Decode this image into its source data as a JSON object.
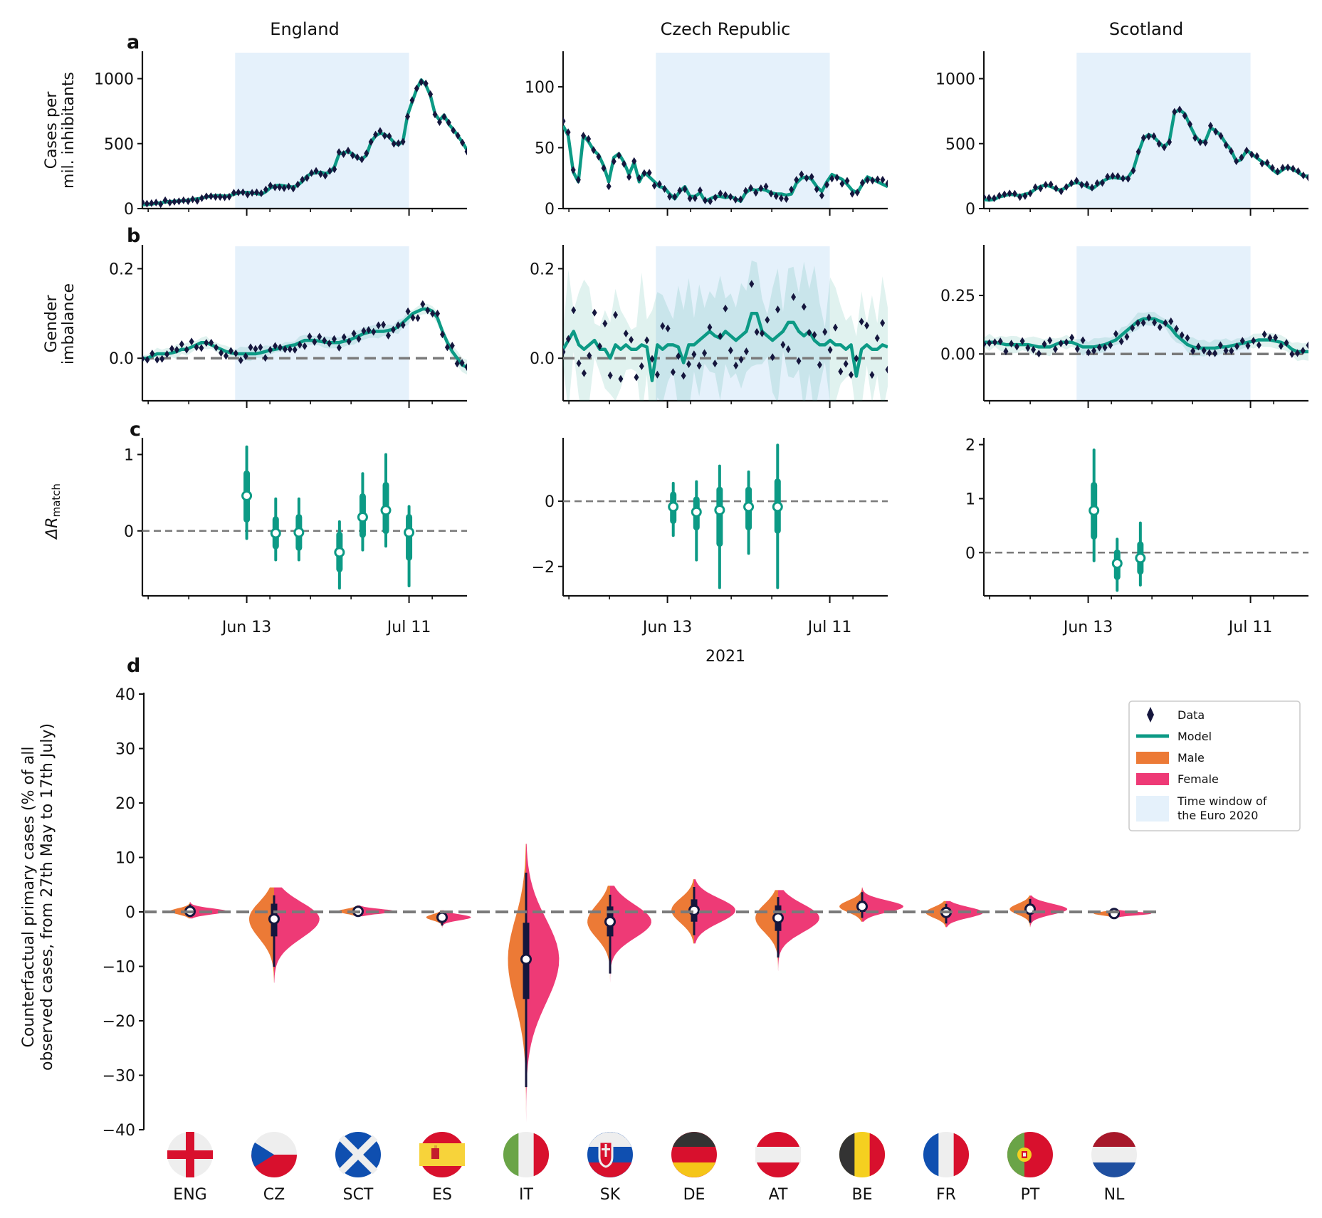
{
  "colors": {
    "euro_window": "#e5f1fb",
    "model": "#0c9a85",
    "data": "#15163d",
    "male": "#ec7a36",
    "female": "#ee3a76",
    "zero_line": "#7a7a7a",
    "axis": "#111111"
  },
  "figure": {
    "shared_xlabel": "2021",
    "date_ticks": [
      "Jun 13",
      "Jul 11"
    ]
  },
  "countries": [
    {
      "name": "England",
      "cases_ticks": [
        "0",
        "500",
        "1000"
      ],
      "gender_ticks": [
        "0.0",
        "0.2"
      ],
      "delta_ticks": [
        "0",
        "1"
      ]
    },
    {
      "name": "Czech Republic",
      "cases_ticks": [
        "0",
        "50",
        "100"
      ],
      "gender_ticks": [
        "0.0",
        "0.2"
      ],
      "delta_ticks": [
        "−2",
        "0"
      ]
    },
    {
      "name": "Scotland",
      "cases_ticks": [
        "0",
        "500",
        "1000"
      ],
      "gender_ticks": [
        "0.00",
        "0.25"
      ],
      "delta_ticks": [
        "0",
        "1",
        "2"
      ]
    }
  ],
  "panels": {
    "a": {
      "letter": "a",
      "ylabel_line1": "Cases per",
      "ylabel_line2": "mil. inhibitants"
    },
    "b": {
      "letter": "b",
      "ylabel_line1": "Gender",
      "ylabel_line2": "imbalance"
    },
    "c": {
      "letter": "c",
      "ylabel_main": "ΔR",
      "ylabel_sub": "match"
    },
    "d": {
      "letter": "d",
      "ylabel_line1": "Counterfactual primary cases (% of all",
      "ylabel_line2": "observed cases, from 27th May to 17th July)",
      "yticks": [
        "−40",
        "−30",
        "−20",
        "−10",
        "0",
        "10",
        "20",
        "30",
        "40"
      ]
    }
  },
  "legend": {
    "items": [
      {
        "label": "Data",
        "kind": "diamond"
      },
      {
        "label": "Model",
        "kind": "line"
      },
      {
        "label": "Male",
        "kind": "patch-male"
      },
      {
        "label": "Female",
        "kind": "patch-female"
      },
      {
        "label_line1": "Time window of",
        "label_line2": "the Euro 2020",
        "kind": "patch-window"
      }
    ]
  },
  "flags": [
    "ENG",
    "CZ",
    "SCT",
    "ES",
    "IT",
    "SK",
    "DE",
    "AT",
    "BE",
    "FR",
    "PT",
    "NL"
  ],
  "chart_data": [
    {
      "type": "line",
      "panel": "a",
      "x_range": [
        "2021-05-26",
        "2021-07-21"
      ],
      "highlight_window": [
        "2021-06-11",
        "2021-07-11"
      ],
      "series": [
        {
          "country": "England",
          "ylim": [
            0,
            1200
          ],
          "model": [
            30,
            30,
            35,
            40,
            45,
            50,
            55,
            55,
            60,
            60,
            65,
            70,
            75,
            80,
            90,
            95,
            100,
            100,
            95,
            100,
            110,
            120,
            125,
            125,
            120,
            115,
            110,
            130,
            160,
            175,
            180,
            175,
            170,
            165,
            180,
            210,
            250,
            270,
            275,
            280,
            270,
            280,
            320,
            420,
            430,
            440,
            420,
            390,
            380,
            410,
            510,
            560,
            580,
            570,
            550,
            510,
            490,
            520,
            720,
            820,
            920,
            990,
            950,
            870,
            730,
            680,
            720,
            650,
            610,
            560,
            510,
            450
          ]
        },
        {
          "country": "Czech Republic",
          "ylim": [
            0,
            128
          ],
          "model": [
            68,
            60,
            30,
            22,
            60,
            55,
            48,
            44,
            35,
            22,
            42,
            45,
            38,
            28,
            38,
            22,
            30,
            26,
            22,
            18,
            17,
            12,
            8,
            14,
            18,
            10,
            10,
            13,
            6,
            8,
            10,
            10,
            9,
            10,
            8,
            6,
            13,
            16,
            15,
            16,
            15,
            13,
            12,
            12,
            11,
            12,
            21,
            25,
            26,
            24,
            18,
            14,
            22,
            28,
            26,
            24,
            20,
            15,
            13,
            20,
            26,
            24,
            22,
            20,
            18
          ]
        },
        {
          "country": "Scotland",
          "ylim": [
            0,
            1200
          ],
          "model": [
            70,
            65,
            70,
            90,
            100,
            110,
            105,
            100,
            110,
            120,
            150,
            170,
            180,
            170,
            150,
            140,
            165,
            190,
            200,
            190,
            170,
            150,
            180,
            210,
            230,
            240,
            235,
            230,
            240,
            300,
            430,
            540,
            570,
            550,
            510,
            470,
            520,
            740,
            760,
            730,
            640,
            560,
            510,
            520,
            620,
            600,
            560,
            500,
            450,
            360,
            380,
            450,
            420,
            390,
            360,
            340,
            300,
            270,
            300,
            320,
            300,
            280,
            250,
            250
          ]
        }
      ]
    },
    {
      "type": "line",
      "panel": "b",
      "series": [
        {
          "country": "England",
          "ylim": [
            -0.095,
            0.25
          ],
          "model": [
            0.0,
            0.0,
            0.005,
            0.01,
            0.01,
            0.01,
            0.012,
            0.015,
            0.02,
            0.02,
            0.025,
            0.03,
            0.035,
            0.035,
            0.03,
            0.025,
            0.02,
            0.015,
            0.012,
            0.01,
            0.01,
            0.01,
            0.01,
            0.01,
            0.012,
            0.015,
            0.018,
            0.02,
            0.022,
            0.025,
            0.028,
            0.03,
            0.035,
            0.04,
            0.04,
            0.04,
            0.038,
            0.036,
            0.035,
            0.035,
            0.035,
            0.038,
            0.04,
            0.045,
            0.05,
            0.055,
            0.058,
            0.06,
            0.06,
            0.06,
            0.062,
            0.065,
            0.07,
            0.08,
            0.09,
            0.1,
            0.105,
            0.11,
            0.11,
            0.105,
            0.09,
            0.06,
            0.035,
            0.015,
            0.0,
            -0.015,
            -0.02
          ]
        },
        {
          "country": "Czech Republic",
          "ylim": [
            -0.095,
            0.25
          ],
          "model": [
            0.02,
            0.04,
            0.06,
            0.03,
            0.02,
            0.03,
            0.04,
            0.02,
            0.02,
            0.0,
            0.03,
            0.02,
            0.03,
            0.02,
            0.02,
            0.03,
            0.025,
            -0.05,
            0.03,
            0.02,
            0.03,
            0.03,
            0.025,
            -0.01,
            0.03,
            0.03,
            0.04,
            0.05,
            0.06,
            0.05,
            0.045,
            0.06,
            0.05,
            0.04,
            0.05,
            0.06,
            0.1,
            0.1,
            0.06,
            0.05,
            0.04,
            0.05,
            0.06,
            0.08,
            0.08,
            0.06,
            0.05,
            0.06,
            0.04,
            0.03,
            0.03,
            0.04,
            0.03,
            0.03,
            0.02,
            0.03,
            -0.04,
            0.02,
            0.03,
            0.02,
            0.02,
            0.03,
            0.025
          ]
        },
        {
          "country": "Scotland",
          "ylim": [
            -0.2,
            0.46
          ],
          "model": [
            0.05,
            0.05,
            0.05,
            0.045,
            0.04,
            0.04,
            0.04,
            0.04,
            0.04,
            0.035,
            0.03,
            0.03,
            0.03,
            0.04,
            0.05,
            0.05,
            0.05,
            0.04,
            0.03,
            0.03,
            0.03,
            0.035,
            0.04,
            0.05,
            0.06,
            0.08,
            0.1,
            0.12,
            0.14,
            0.15,
            0.15,
            0.15,
            0.14,
            0.13,
            0.11,
            0.08,
            0.06,
            0.04,
            0.03,
            0.025,
            0.025,
            0.025,
            0.025,
            0.03,
            0.03,
            0.035,
            0.04,
            0.045,
            0.05,
            0.055,
            0.06,
            0.06,
            0.06,
            0.055,
            0.05,
            0.04,
            0.02,
            0.01,
            0.01,
            0.01
          ]
        }
      ]
    },
    {
      "type": "scatter",
      "panel": "c",
      "description_of_values": "posterior median with 68% and 95% credible intervals",
      "series": [
        {
          "country": "England",
          "ylim": [
            -0.85,
            1.2
          ],
          "points": [
            {
              "date": "2021-06-13",
              "median": 0.46,
              "ci68": [
                0.15,
                0.75
              ],
              "ci95": [
                -0.1,
                1.1
              ]
            },
            {
              "date": "2021-06-18",
              "median": -0.03,
              "ci68": [
                -0.2,
                0.15
              ],
              "ci95": [
                -0.38,
                0.42
              ]
            },
            {
              "date": "2021-06-22",
              "median": -0.02,
              "ci68": [
                -0.22,
                0.18
              ],
              "ci95": [
                -0.38,
                0.42
              ]
            },
            {
              "date": "2021-06-29",
              "median": -0.28,
              "ci68": [
                -0.5,
                -0.05
              ],
              "ci95": [
                -0.75,
                0.12
              ]
            },
            {
              "date": "2021-07-03",
              "median": 0.18,
              "ci68": [
                -0.05,
                0.45
              ],
              "ci95": [
                -0.25,
                0.75
              ]
            },
            {
              "date": "2021-07-07",
              "median": 0.27,
              "ci68": [
                0.0,
                0.6
              ],
              "ci95": [
                -0.2,
                1.0
              ]
            },
            {
              "date": "2021-07-11",
              "median": -0.02,
              "ci68": [
                -0.35,
                0.18
              ],
              "ci95": [
                -0.72,
                0.32
              ]
            }
          ]
        },
        {
          "country": "Czech Republic",
          "ylim": [
            -2.9,
            1.9
          ],
          "points": [
            {
              "date": "2021-06-14",
              "median": -0.17,
              "ci68": [
                -0.6,
                0.2
              ],
              "ci95": [
                -1.05,
                0.55
              ]
            },
            {
              "date": "2021-06-18",
              "median": -0.33,
              "ci68": [
                -0.8,
                0.05
              ],
              "ci95": [
                -1.8,
                0.6
              ]
            },
            {
              "date": "2021-06-22",
              "median": -0.27,
              "ci68": [
                -1.3,
                0.35
              ],
              "ci95": [
                -2.65,
                1.08
              ]
            },
            {
              "date": "2021-06-27",
              "median": -0.17,
              "ci68": [
                -0.8,
                0.35
              ],
              "ci95": [
                -1.6,
                0.9
              ]
            },
            {
              "date": "2021-07-02",
              "median": -0.17,
              "ci68": [
                -0.9,
                0.6
              ],
              "ci95": [
                -2.65,
                1.72
              ]
            }
          ]
        },
        {
          "country": "Scotland",
          "ylim": [
            -0.8,
            2.1
          ],
          "points": [
            {
              "date": "2021-06-14",
              "median": 0.78,
              "ci68": [
                0.3,
                1.25
              ],
              "ci95": [
                -0.15,
                1.9
              ]
            },
            {
              "date": "2021-06-18",
              "median": -0.2,
              "ci68": [
                -0.45,
                0.0
              ],
              "ci95": [
                -0.7,
                0.25
              ]
            },
            {
              "date": "2021-06-22",
              "median": -0.1,
              "ci68": [
                -0.35,
                0.15
              ],
              "ci95": [
                -0.6,
                0.55
              ]
            }
          ]
        }
      ]
    },
    {
      "type": "violin",
      "panel": "d",
      "ylim": [
        -40,
        40
      ],
      "categories": [
        "ENG",
        "CZ",
        "SCT",
        "ES",
        "IT",
        "SK",
        "DE",
        "AT",
        "BE",
        "FR",
        "PT",
        "NL"
      ],
      "series": [
        {
          "name": "Male",
          "side": "left"
        },
        {
          "name": "Female",
          "side": "right"
        }
      ],
      "values": [
        {
          "country": "ENG",
          "median": 0.1,
          "iqr": [
            -0.4,
            0.6
          ],
          "range": [
            -1.2,
            1.8
          ],
          "spread": 0.45
        },
        {
          "country": "CZ",
          "median": -1.3,
          "iqr": [
            -4.5,
            1.5
          ],
          "range": [
            -13,
            4.5
          ],
          "spread": 0.55
        },
        {
          "country": "SCT",
          "median": 0.1,
          "iqr": [
            -0.3,
            0.5
          ],
          "range": [
            -0.8,
            1.2
          ],
          "spread": 0.45
        },
        {
          "country": "ES",
          "median": -1.0,
          "iqr": [
            -1.5,
            -0.5
          ],
          "range": [
            -3.0,
            0.3
          ],
          "spread": 0.35
        },
        {
          "country": "IT",
          "median": -8.7,
          "iqr": [
            -16,
            -2
          ],
          "range": [
            -40,
            12.5
          ],
          "spread": 0.4
        },
        {
          "country": "SK",
          "median": -1.8,
          "iqr": [
            -4.5,
            1.0
          ],
          "range": [
            -14.5,
            4.8
          ],
          "spread": 0.5
        },
        {
          "country": "DE",
          "median": 0.3,
          "iqr": [
            -1.8,
            2.3
          ],
          "range": [
            -5.8,
            6.0
          ],
          "spread": 0.5
        },
        {
          "country": "AT",
          "median": -1.1,
          "iqr": [
            -3.5,
            1.2
          ],
          "range": [
            -10.8,
            4.0
          ],
          "spread": 0.5
        },
        {
          "country": "BE",
          "median": 1.0,
          "iqr": [
            0.0,
            2.0
          ],
          "range": [
            -1.8,
            4.5
          ],
          "spread": 0.5
        },
        {
          "country": "FR",
          "median": -0.1,
          "iqr": [
            -1.0,
            0.8
          ],
          "range": [
            -2.8,
            2.0
          ],
          "spread": 0.45
        },
        {
          "country": "PT",
          "median": 0.5,
          "iqr": [
            -0.4,
            1.4
          ],
          "range": [
            -2.8,
            3.0
          ],
          "spread": 0.45
        },
        {
          "country": "NL",
          "median": -0.3,
          "iqr": [
            -0.6,
            0.0
          ],
          "range": [
            -1.0,
            0.4
          ],
          "spread": 0.45
        }
      ]
    }
  ]
}
